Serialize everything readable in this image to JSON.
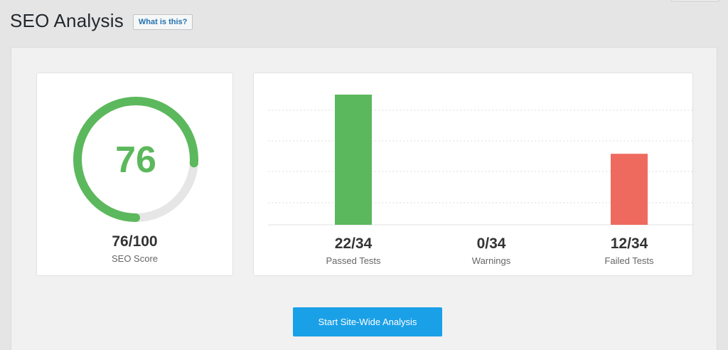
{
  "page": {
    "title": "SEO Analysis",
    "help_label": "What is this?"
  },
  "score": {
    "value": 76,
    "max": 100,
    "display": "76/100",
    "label": "SEO Score",
    "colors": {
      "progress": "#5cb85c",
      "track": "#e6e6e6"
    }
  },
  "results": {
    "total": 34,
    "items": [
      {
        "key": "passed",
        "value": "22/34",
        "count": 22,
        "label": "Passed Tests",
        "color": "#5cb85c"
      },
      {
        "key": "warnings",
        "value": "0/34",
        "count": 0,
        "label": "Warnings",
        "color": "#f0ad4e"
      },
      {
        "key": "failed",
        "value": "12/34",
        "count": 12,
        "label": "Failed Tests",
        "color": "#ef6a5e"
      }
    ]
  },
  "actions": {
    "start_analysis_label": "Start Site-Wide Analysis"
  }
}
